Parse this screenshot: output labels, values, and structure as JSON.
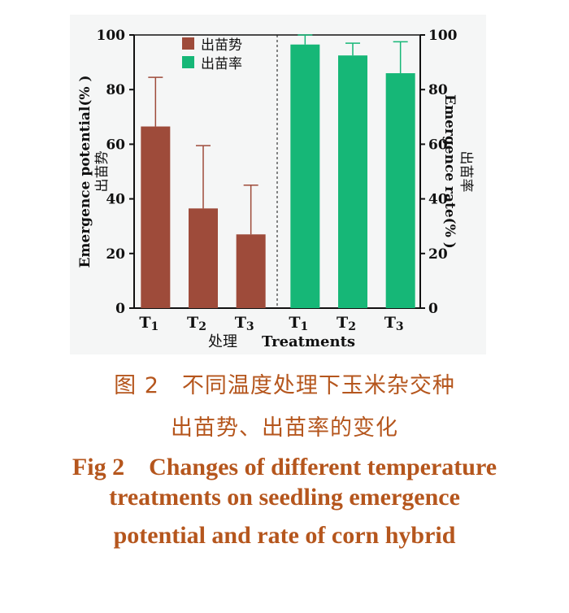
{
  "chart_data": {
    "type": "bar",
    "categories": [
      "T1",
      "T2",
      "T3"
    ],
    "series": [
      {
        "name": "出苗势",
        "axis": "left",
        "color": "#9e4b3a",
        "values": [
          66.5,
          36.5,
          27
        ],
        "error_upper": [
          84.5,
          59.5,
          45
        ]
      },
      {
        "name": "出苗率",
        "axis": "right",
        "color": "#16b777",
        "values": [
          96.5,
          92.5,
          86
        ],
        "error_upper": [
          100,
          97,
          97.5
        ]
      }
    ],
    "xlabel_cn": "处理",
    "xlabel_en": "Treatments",
    "ylabel_left_en": "Emergence potential(% )",
    "ylabel_left_cn": "出苗势",
    "ylabel_right_en": "Emergence rate(% )",
    "ylabel_right_cn": "出苗率",
    "ylim": [
      0,
      100
    ],
    "yticks": [
      0,
      20,
      40,
      60,
      80,
      100
    ],
    "legend_position": "top-left",
    "grid": false
  },
  "caption": {
    "cn_line1": "图 2　不同温度处理下玉米杂交种",
    "cn_line2": "出苗势、出苗率的变化",
    "en_line1": "Fig 2　Changes of different temperature",
    "en_line2": "treatments on seedling emergence",
    "en_line3": "potential and rate of corn hybrid"
  },
  "colors": {
    "caption": "#b5561d",
    "plot_background": "#f5f6f6"
  }
}
